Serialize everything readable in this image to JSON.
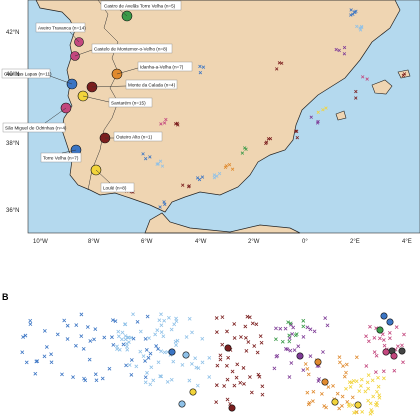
{
  "panel_b_label": "B",
  "axes": {
    "lat_ticks": [
      "42°N",
      "40°N",
      "38°N",
      "36°N"
    ],
    "lon_ticks": [
      "10°W",
      "8°W",
      "6°W",
      "4°W",
      "2°W",
      "0°",
      "2°E",
      "4°E"
    ]
  },
  "sites": [
    {
      "label": "Castro de Avelãs Torre Velha (n=5)"
    },
    {
      "label": "Aveiro Travanca (n=14)"
    },
    {
      "label": "Castelo de Montemor-o-Velho (n=8)"
    },
    {
      "label": "Idanha-a-Velha (n=7)"
    },
    {
      "label": "Cova das Lapas (n=11)"
    },
    {
      "label": "Monte da Calada (n=4)"
    },
    {
      "label": "Santarém (n=15)"
    },
    {
      "label": "São Miguel de Odrinhas (n=4)"
    },
    {
      "label": "Outeiro Alto (n=1)"
    },
    {
      "label": "Torre Velha (n=7)"
    },
    {
      "label": "Loulé (n=8)"
    }
  ],
  "colors": {
    "sea": "#b4d9ee",
    "land": "#efd5b2",
    "coast": "#222222",
    "palette": [
      "#3b75c4",
      "#8fc1e8",
      "#7b1e1e",
      "#c3477e",
      "#7e3b96",
      "#e08a2e",
      "#f2d43b",
      "#3a9a48",
      "#444444"
    ]
  }
}
